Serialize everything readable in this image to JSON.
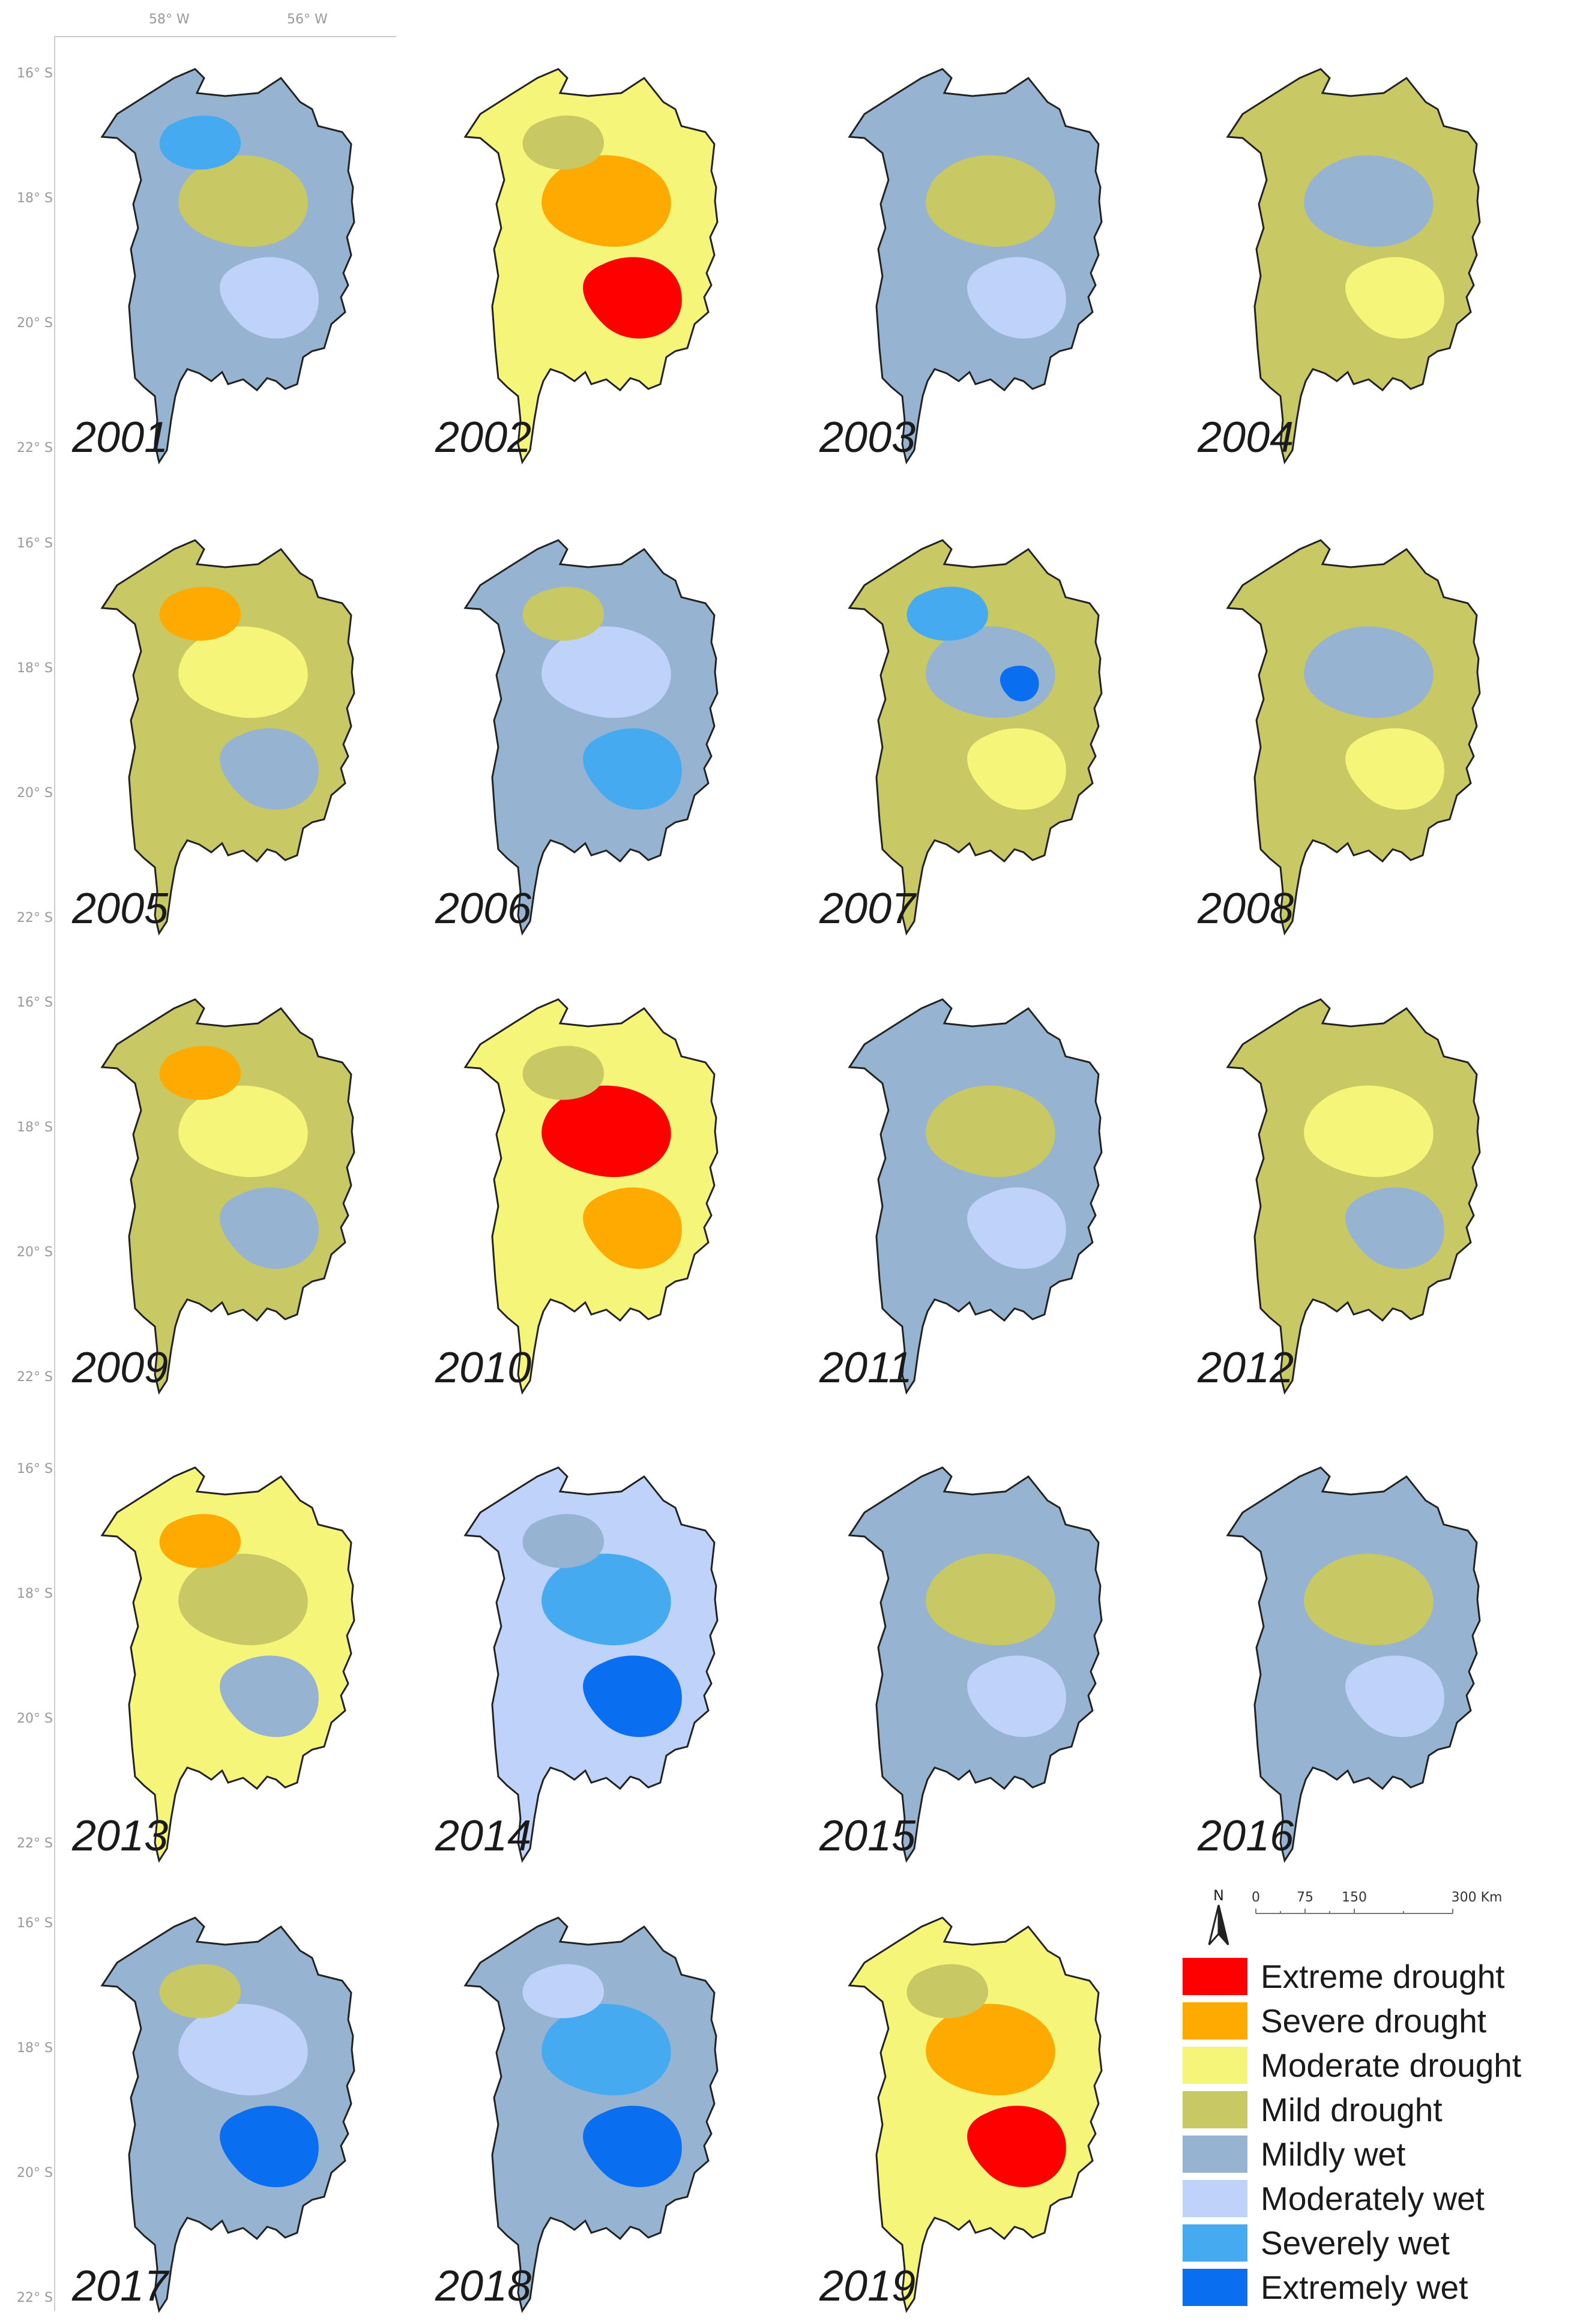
{
  "axes": {
    "lat_ticks": [
      "16° S",
      "18° S",
      "20° S",
      "22° S"
    ],
    "lon_ticks": [
      "58° W",
      "56° W"
    ]
  },
  "panels": [
    {
      "year": "2001",
      "classes": [
        "mildly-wet",
        "mild-drought",
        "moderately-wet",
        "severely-wet"
      ]
    },
    {
      "year": "2002",
      "classes": [
        "moderate-drought",
        "severe-drought",
        "extreme-drought",
        "mild-drought"
      ]
    },
    {
      "year": "2003",
      "classes": [
        "mildly-wet",
        "mild-drought",
        "moderately-wet"
      ]
    },
    {
      "year": "2004",
      "classes": [
        "mild-drought",
        "mildly-wet",
        "moderate-drought"
      ]
    },
    {
      "year": "2005",
      "classes": [
        "mild-drought",
        "moderate-drought",
        "mildly-wet",
        "severe-drought"
      ]
    },
    {
      "year": "2006",
      "classes": [
        "mildly-wet",
        "moderately-wet",
        "severely-wet",
        "mild-drought"
      ]
    },
    {
      "year": "2007",
      "classes": [
        "mild-drought",
        "mildly-wet",
        "moderate-drought",
        "severely-wet",
        "extremely-wet"
      ]
    },
    {
      "year": "2008",
      "classes": [
        "mild-drought",
        "mildly-wet",
        "moderate-drought"
      ]
    },
    {
      "year": "2009",
      "classes": [
        "mild-drought",
        "moderate-drought",
        "mildly-wet",
        "severe-drought"
      ]
    },
    {
      "year": "2010",
      "classes": [
        "moderate-drought",
        "extreme-drought",
        "severe-drought",
        "mild-drought"
      ]
    },
    {
      "year": "2011",
      "classes": [
        "mildly-wet",
        "mild-drought",
        "moderately-wet"
      ]
    },
    {
      "year": "2012",
      "classes": [
        "mild-drought",
        "moderate-drought",
        "mildly-wet"
      ]
    },
    {
      "year": "2013",
      "classes": [
        "moderate-drought",
        "mild-drought",
        "mildly-wet",
        "severe-drought"
      ]
    },
    {
      "year": "2014",
      "classes": [
        "moderately-wet",
        "severely-wet",
        "extremely-wet",
        "mildly-wet"
      ]
    },
    {
      "year": "2015",
      "classes": [
        "mildly-wet",
        "mild-drought",
        "moderately-wet"
      ]
    },
    {
      "year": "2016",
      "classes": [
        "mildly-wet",
        "mild-drought",
        "moderately-wet"
      ]
    },
    {
      "year": "2017",
      "classes": [
        "mildly-wet",
        "moderately-wet",
        "extremely-wet",
        "mild-drought"
      ]
    },
    {
      "year": "2018",
      "classes": [
        "mildly-wet",
        "severely-wet",
        "extremely-wet",
        "moderately-wet"
      ]
    },
    {
      "year": "2019",
      "classes": [
        "moderate-drought",
        "severe-drought",
        "extreme-drought",
        "mild-drought"
      ]
    }
  ],
  "legend": {
    "north_label": "N",
    "scale_labels": [
      "0",
      "75",
      "150",
      "300 Km"
    ],
    "items": [
      {
        "label": "Extreme drought",
        "color": "#ff0000"
      },
      {
        "label": "Severe drought",
        "color": "#ffaa00"
      },
      {
        "label": "Moderate drought",
        "color": "#f5f57a"
      },
      {
        "label": "Mild drought",
        "color": "#c8c864"
      },
      {
        "label": "Mildly wet",
        "color": "#96b4d2"
      },
      {
        "label": "Moderately wet",
        "color": "#bed2fa"
      },
      {
        "label": "Severely wet",
        "color": "#46aaf0"
      },
      {
        "label": "Extremely wet",
        "color": "#0a6ef0"
      }
    ]
  }
}
